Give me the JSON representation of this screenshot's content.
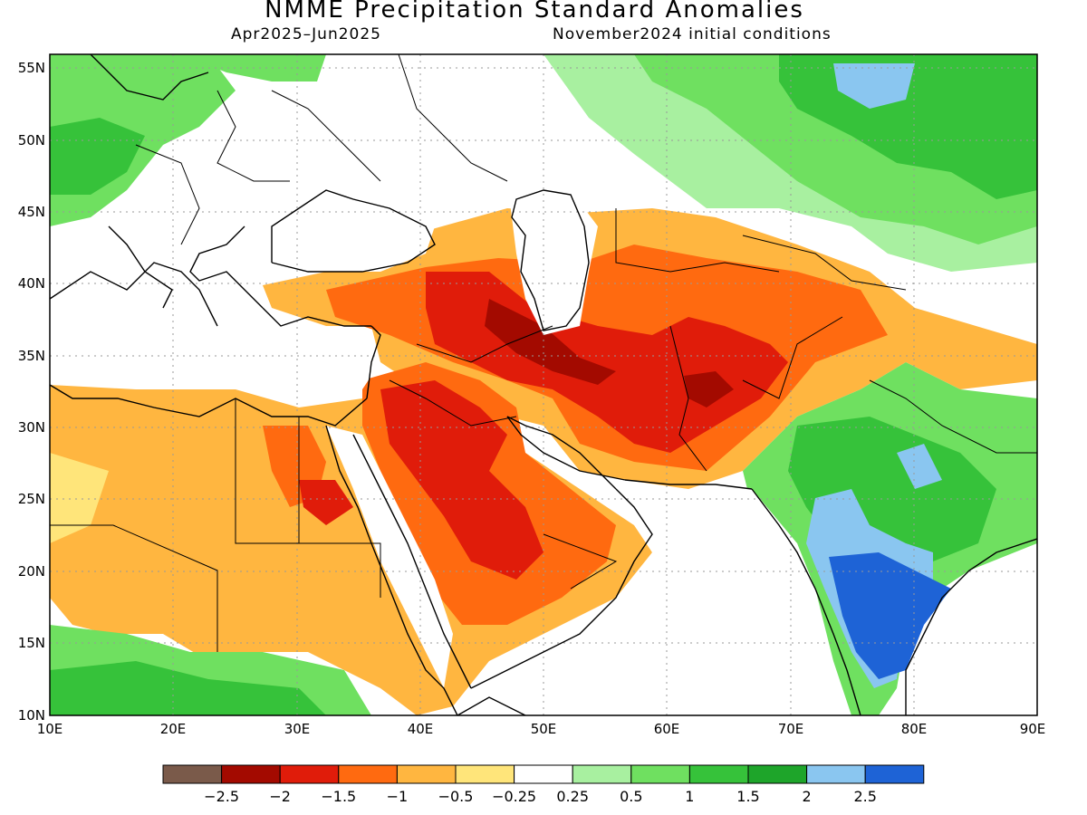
{
  "header": {
    "title": "NMME Precipitation Standard Anomalies",
    "period": "Apr2025–Jun2025",
    "init": "November2024 initial conditions"
  },
  "map": {
    "lon_range": [
      10,
      90
    ],
    "lat_range": [
      10,
      56
    ],
    "lat_ticks": [
      "55N",
      "50N",
      "45N",
      "40N",
      "35N",
      "30N",
      "25N",
      "20N",
      "15N",
      "10N"
    ],
    "lon_ticks": [
      "10E",
      "20E",
      "30E",
      "40E",
      "50E",
      "60E",
      "70E",
      "80E",
      "90E"
    ]
  },
  "colorbar": {
    "colors": [
      "#7a5a4a",
      "#a30a00",
      "#e01c0a",
      "#ff6a10",
      "#ffb640",
      "#ffe57a",
      "#ffffff",
      "#a8f0a0",
      "#6fe060",
      "#36c23a",
      "#1ea52a",
      "#8ac6f0",
      "#1e63d6"
    ],
    "labels": [
      "−2.5",
      "−2",
      "−1.5",
      "−1",
      "−0.5",
      "−0.25",
      "0.25",
      "0.5",
      "1",
      "1.5",
      "2",
      "2.5"
    ]
  }
}
